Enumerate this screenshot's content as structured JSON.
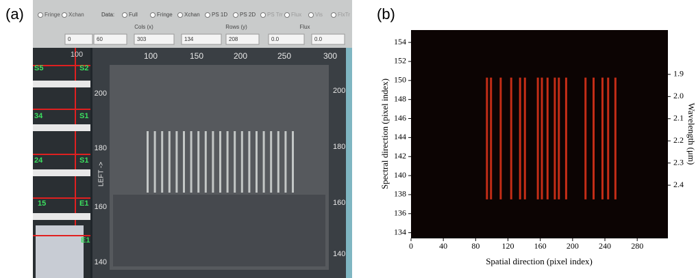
{
  "panel_a": {
    "label": "(a)",
    "toolbar": {
      "left_options": [
        "Fringe",
        "Xchan"
      ],
      "data_label": "Data:",
      "data_options": [
        "Full",
        "Fringe",
        "Xchan",
        "PS 1D",
        "PS 2D",
        "PS Trr",
        "Flux",
        "Vis",
        "FlxTr"
      ],
      "fields": [
        "Cols (x)",
        "Rows (y)",
        "Flux"
      ],
      "inputs": [
        "0",
        "60",
        "303",
        "134",
        "208",
        "0.0",
        "0.0"
      ]
    },
    "sidebar": {
      "scale": "100",
      "labels": [
        "S5",
        "S2",
        "34",
        "S1",
        "24",
        "S1",
        "15",
        "E1",
        "E1"
      ]
    },
    "image": {
      "top_ticks": [
        "100",
        "150",
        "200",
        "250",
        "300"
      ],
      "left_ticks": [
        "200",
        "180",
        "160",
        "140"
      ],
      "right_ticks": [
        "200",
        "180",
        "160",
        "140"
      ],
      "axis_label": "LEFT ->"
    }
  },
  "chart_data": {
    "type": "heatmap",
    "panel_label": "(b)",
    "x_label": "Spatial direction (pixel index)",
    "y_label": "Spectral direction (pixel index)",
    "y2_label": "Wavelength (μm)",
    "xlim": [
      0,
      318
    ],
    "xticks": [
      0,
      40,
      80,
      120,
      160,
      200,
      240,
      280
    ],
    "ylim": [
      133.4,
      155.3
    ],
    "yticks": [
      134,
      136,
      138,
      140,
      142,
      144,
      146,
      148,
      150,
      152,
      154
    ],
    "y2lim": [
      2.64,
      1.7
    ],
    "y2ticks": [
      1.9,
      {
        "value": 2,
        "label": "2.0"
      },
      2.1,
      2.2,
      2.3,
      2.4
    ],
    "x": [
      94,
      99,
      111,
      124,
      135,
      141,
      157,
      162,
      169,
      178,
      183,
      192,
      216,
      226,
      237,
      244,
      253
    ],
    "y_top": 150.3,
    "y_bottom": 137.5,
    "color": "#d8321a",
    "background": "#0c0403"
  }
}
